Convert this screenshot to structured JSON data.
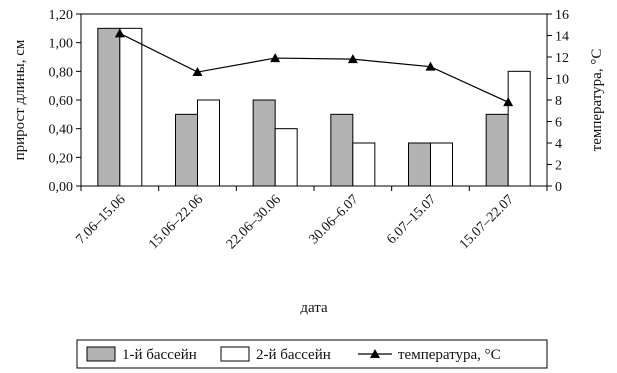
{
  "chart_data": {
    "type": "bar",
    "categories": [
      "7.06–15.06",
      "15.06–22.06",
      "22.06–30.06",
      "30.06–6.07",
      "6.07–15.07",
      "15.07–22.07"
    ],
    "series": [
      {
        "name": "1-й бассейн",
        "axis": "left",
        "kind": "bar",
        "values": [
          1.1,
          0.5,
          0.6,
          0.5,
          0.3,
          0.5
        ],
        "color": "#b3b3b3"
      },
      {
        "name": "2-й бассейн",
        "axis": "left",
        "kind": "bar",
        "values": [
          1.1,
          0.6,
          0.4,
          0.3,
          0.3,
          0.8
        ],
        "color": "#ffffff"
      },
      {
        "name": "температура, °С",
        "axis": "right",
        "kind": "line",
        "marker": "triangle",
        "values": [
          14.2,
          10.6,
          11.9,
          11.8,
          11.1,
          7.8
        ],
        "color": "#000000"
      }
    ],
    "xlabel": "дата",
    "ylabel": "прирост длины, см",
    "y2label": "температура, °С",
    "ylim": [
      0,
      1.2
    ],
    "y2lim": [
      0,
      16
    ],
    "yticks": [
      "0,00",
      "0,20",
      "0,40",
      "0,60",
      "0,80",
      "1,00",
      "1,20"
    ],
    "y2ticks": [
      "0",
      "2",
      "4",
      "6",
      "8",
      "10",
      "12",
      "14",
      "16"
    ],
    "grid": false,
    "legend_position": "bottom"
  }
}
